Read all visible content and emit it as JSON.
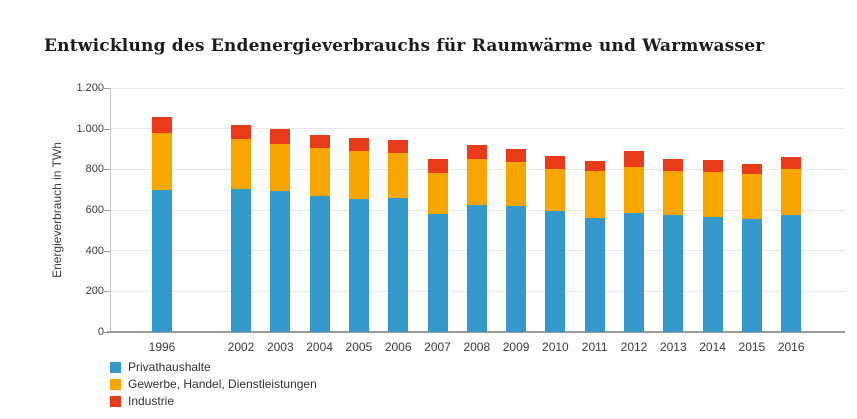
{
  "title": "Entwicklung des Endenergieverbrauchs für Raumwärme und Warmwasser",
  "colors": {
    "privathaushalte": "#3598CA",
    "gewerbe_handel_dienstleistungen": "#F7A600",
    "industrie": "#E83B17",
    "gridline": "#e7e7e7",
    "axis": "#9b9b9b",
    "text": "#3c3c3c"
  },
  "chart_data": {
    "type": "bar",
    "stacked": true,
    "title": "Entwicklung des Endenergieverbrauchs für Raumwärme und Warmwasser",
    "xlabel": "",
    "ylabel": "Energieverbrauch  in TWh",
    "ylim": [
      0,
      1200
    ],
    "ytick_step": 200,
    "ytick_labels": [
      "0",
      "200",
      "400",
      "600",
      "800",
      "1.000",
      "1.200"
    ],
    "grid": true,
    "legend_position": "bottom-left",
    "categories": [
      "1996",
      "2002",
      "2003",
      "2004",
      "2005",
      "2006",
      "2007",
      "2008",
      "2009",
      "2010",
      "2011",
      "2012",
      "2013",
      "2014",
      "2015",
      "2016"
    ],
    "series": [
      {
        "name": "Privathaushalte",
        "color": "#3598CA",
        "values": [
          698,
          701,
          694,
          667,
          654,
          659,
          580,
          625,
          622,
          597,
          559,
          587,
          576,
          564,
          558,
          576
        ]
      },
      {
        "name": "Gewerbe, Handel, Dienstleistungen",
        "color": "#F7A600",
        "values": [
          282,
          246,
          232,
          237,
          234,
          221,
          200,
          228,
          216,
          206,
          231,
          224,
          214,
          223,
          219,
          228
        ]
      },
      {
        "name": "Industrie",
        "color": "#E83B17",
        "values": [
          78,
          73,
          74,
          66,
          65,
          65,
          70,
          65,
          62,
          61,
          52,
          77,
          60,
          61,
          49,
          56
        ]
      }
    ]
  }
}
